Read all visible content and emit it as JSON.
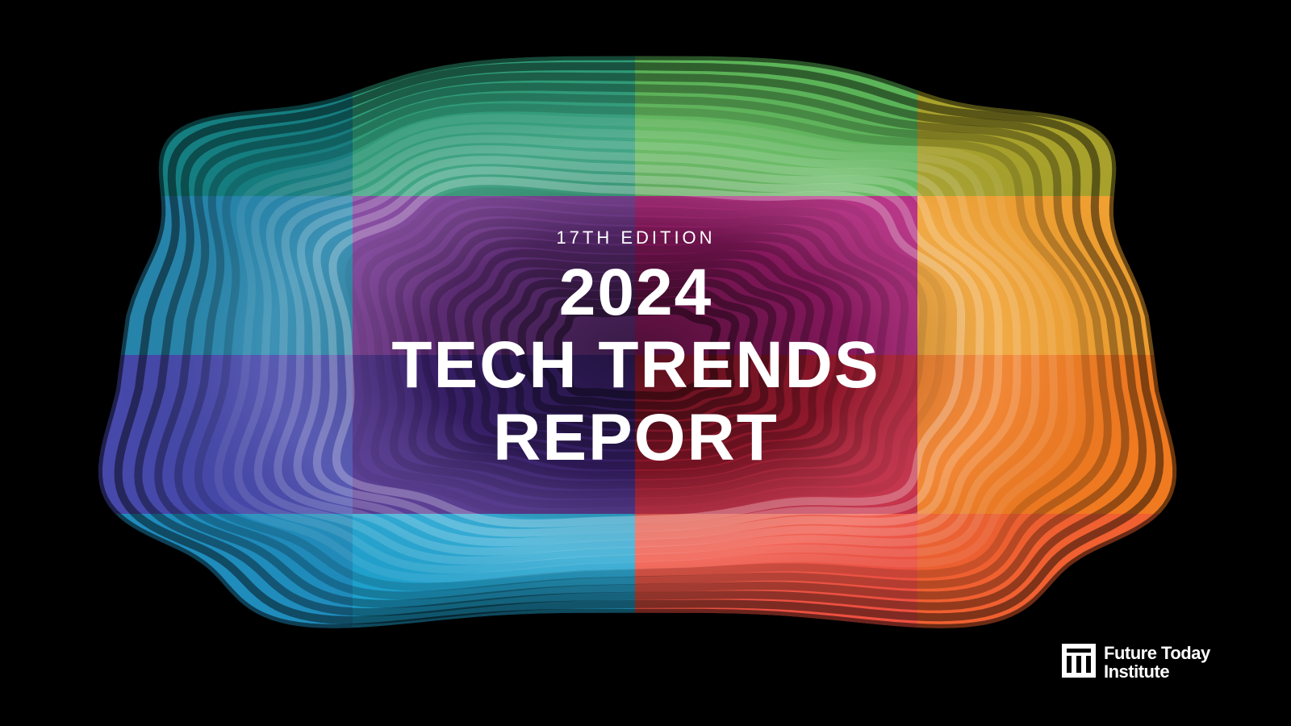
{
  "cover": {
    "edition": "17TH EDITION",
    "title": [
      "2024",
      "TECH TRENDS",
      "REPORT"
    ]
  },
  "logo": {
    "lines": [
      "Future Today",
      "Institute"
    ]
  }
}
